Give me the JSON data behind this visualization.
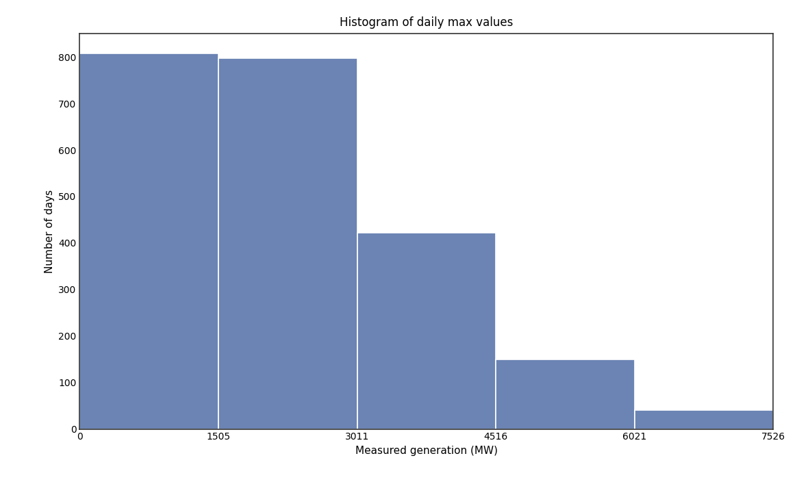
{
  "title": "Histogram of daily max values",
  "xlabel": "Measured generation (MW)",
  "ylabel": "Number of days",
  "bin_edges": [
    0,
    1505,
    3011,
    4516,
    6021,
    7526
  ],
  "counts": [
    808,
    798,
    422,
    149,
    40
  ],
  "bar_color": "#6b84b4",
  "bar_edgecolor": "white",
  "ylim": [
    0,
    850
  ],
  "yticks": [
    0,
    100,
    200,
    300,
    400,
    500,
    600,
    700,
    800
  ],
  "background_color": "white",
  "title_fontsize": 12,
  "label_fontsize": 11,
  "spine_color": "#333333",
  "figsize": [
    11.64,
    7.04
  ],
  "dpi": 100
}
